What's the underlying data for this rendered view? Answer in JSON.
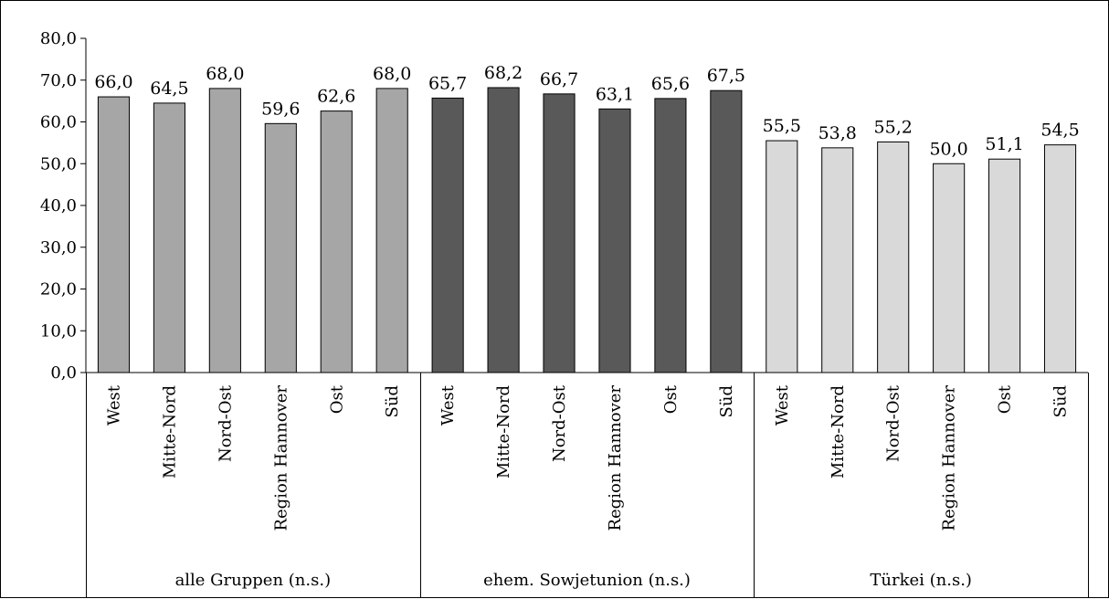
{
  "chart_data": {
    "type": "bar",
    "title": "",
    "xlabel": "",
    "ylabel": "",
    "ylim": [
      0,
      80
    ],
    "y_ticks": [
      0,
      10,
      20,
      30,
      40,
      50,
      60,
      70,
      80
    ],
    "y_tick_labels": [
      "0,0",
      "10,0",
      "20,0",
      "30,0",
      "40,0",
      "50,0",
      "60,0",
      "70,0",
      "80,0"
    ],
    "grid": false,
    "legend": "none",
    "groups": [
      {
        "label": "alle Gruppen (n.s.)",
        "color": "#a6a6a6",
        "categories": [
          "West",
          "Mitte-Nord",
          "Nord-Ost",
          "Region Hannover",
          "Ost",
          "Süd"
        ],
        "values": [
          66.0,
          64.5,
          68.0,
          59.6,
          62.6,
          68.0
        ],
        "value_labels": [
          "66,0",
          "64,5",
          "68,0",
          "59,6",
          "62,6",
          "68,0"
        ]
      },
      {
        "label": "ehem. Sowjetunion (n.s.)",
        "color": "#595959",
        "categories": [
          "West",
          "Mitte-Nord",
          "Nord-Ost",
          "Region Hannover",
          "Ost",
          "Süd"
        ],
        "values": [
          65.7,
          68.2,
          66.7,
          63.1,
          65.6,
          67.5
        ],
        "value_labels": [
          "65,7",
          "68,2",
          "66,7",
          "63,1",
          "65,6",
          "67,5"
        ]
      },
      {
        "label": "Türkei (n.s.)",
        "color": "#d9d9d9",
        "categories": [
          "West",
          "Mitte-Nord",
          "Nord-Ost",
          "Region Hannover",
          "Ost",
          "Süd"
        ],
        "values": [
          55.5,
          53.8,
          55.2,
          50.0,
          51.1,
          54.5
        ],
        "value_labels": [
          "55,5",
          "53,8",
          "55,2",
          "50,0",
          "51,1",
          "54,5"
        ]
      }
    ]
  }
}
